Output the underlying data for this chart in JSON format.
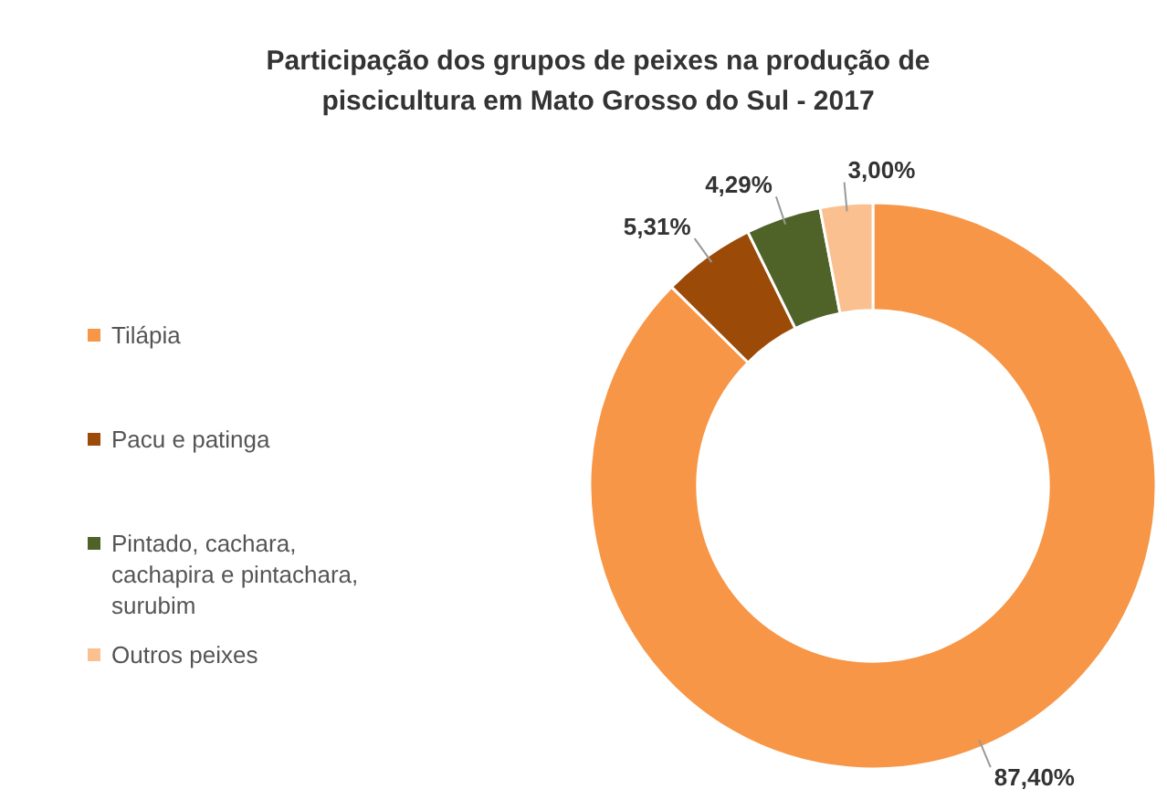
{
  "chart_data": {
    "type": "donut",
    "title": "Participação dos grupos de peixes na produção de piscicultura em Mato Grosso do Sul - 2017",
    "categories": [
      "Tilápia",
      "Pacu e patinga",
      "Pintado, cachara, cachapira e pintachara, surubim",
      "Outros peixes"
    ],
    "values": [
      87.4,
      5.31,
      4.29,
      3.0
    ],
    "colors": [
      "#f79646",
      "#9c4a08",
      "#4f6228",
      "#fac090"
    ],
    "value_labels": [
      "87,40%",
      "5,31%",
      "4,29%",
      "3,00%"
    ],
    "legend": "left"
  }
}
